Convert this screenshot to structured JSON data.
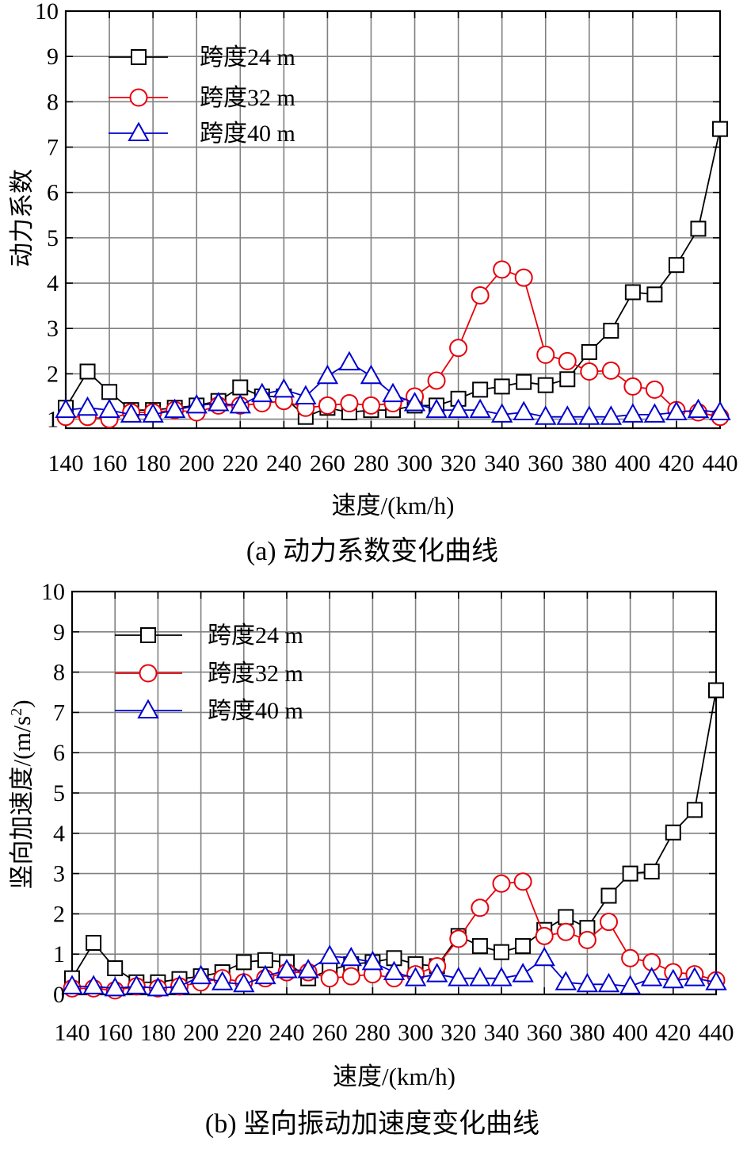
{
  "chart_data": [
    {
      "type": "line",
      "panel": "a",
      "caption": "(a)  动力系数变化曲线",
      "xlabel": "速度/(km/h)",
      "ylabel": "动力系数",
      "xlim": [
        140,
        440
      ],
      "ylim": [
        0.8,
        10
      ],
      "x_ticks": [
        140,
        160,
        180,
        200,
        220,
        240,
        260,
        280,
        300,
        320,
        340,
        360,
        380,
        400,
        420,
        440
      ],
      "y_ticks": [
        1,
        2,
        3,
        4,
        5,
        6,
        7,
        8,
        9,
        10
      ],
      "y_tick_labels": [
        "1",
        "2",
        "3",
        "4",
        "5",
        "6",
        "7",
        "8",
        "9",
        "10"
      ],
      "grid": true,
      "legend_position": "top-left",
      "x": [
        140,
        150,
        160,
        170,
        180,
        190,
        200,
        210,
        220,
        230,
        240,
        250,
        260,
        270,
        280,
        290,
        300,
        310,
        320,
        330,
        340,
        350,
        360,
        370,
        380,
        390,
        400,
        410,
        420,
        430,
        440
      ],
      "series": [
        {
          "name": "跨度24 m",
          "color": "#000000",
          "marker": "square",
          "values": [
            1.25,
            2.05,
            1.6,
            1.2,
            1.2,
            1.25,
            1.3,
            1.4,
            1.7,
            1.5,
            1.5,
            1.05,
            1.25,
            1.15,
            1.2,
            1.2,
            1.3,
            1.3,
            1.45,
            1.65,
            1.72,
            1.82,
            1.75,
            1.88,
            2.48,
            2.95,
            3.8,
            3.75,
            4.4,
            5.2,
            7.4
          ]
        },
        {
          "name": "跨度32 m",
          "color": "#e8000b",
          "marker": "circle",
          "values": [
            1.05,
            1.05,
            1.0,
            1.15,
            1.15,
            1.2,
            1.15,
            1.3,
            1.3,
            1.35,
            1.4,
            1.25,
            1.3,
            1.35,
            1.3,
            1.35,
            1.5,
            1.85,
            2.57,
            3.73,
            4.3,
            4.12,
            2.42,
            2.28,
            2.05,
            2.07,
            1.72,
            1.65,
            1.2,
            1.15,
            1.05
          ]
        },
        {
          "name": "跨度40 m",
          "color": "#0000d0",
          "marker": "triangle",
          "values": [
            1.2,
            1.25,
            1.2,
            1.1,
            1.1,
            1.2,
            1.3,
            1.35,
            1.3,
            1.55,
            1.65,
            1.5,
            1.95,
            2.25,
            1.95,
            1.55,
            1.35,
            1.2,
            1.2,
            1.2,
            1.1,
            1.15,
            1.05,
            1.05,
            1.05,
            1.05,
            1.1,
            1.1,
            1.15,
            1.2,
            1.15
          ]
        }
      ]
    },
    {
      "type": "line",
      "panel": "b",
      "caption": "(b)  竖向振动加速度变化曲线",
      "xlabel": "速度/(km/h)",
      "ylabel": "竖向加速度/(m/s",
      "ylabel_sup": "2",
      "ylabel_end": ")",
      "xlim": [
        140,
        440
      ],
      "ylim": [
        0,
        10
      ],
      "x_ticks": [
        140,
        160,
        180,
        200,
        220,
        240,
        260,
        280,
        300,
        320,
        340,
        360,
        380,
        400,
        420,
        440
      ],
      "y_ticks": [
        0,
        1,
        2,
        3,
        4,
        5,
        6,
        7,
        8,
        9,
        10
      ],
      "y_tick_labels": [
        "0",
        "1",
        "2",
        "3",
        "4",
        "5",
        "6",
        "7",
        "8",
        "9",
        "10"
      ],
      "grid": true,
      "legend_position": "top-left",
      "x": [
        140,
        150,
        160,
        170,
        180,
        190,
        200,
        210,
        220,
        230,
        240,
        250,
        260,
        270,
        280,
        290,
        300,
        310,
        320,
        330,
        340,
        350,
        360,
        370,
        380,
        390,
        400,
        410,
        420,
        430,
        440
      ],
      "series": [
        {
          "name": "跨度24 m",
          "color": "#000000",
          "marker": "square",
          "values": [
            0.4,
            1.28,
            0.65,
            0.3,
            0.3,
            0.38,
            0.45,
            0.55,
            0.8,
            0.85,
            0.8,
            0.4,
            0.6,
            0.75,
            0.8,
            0.9,
            0.75,
            0.7,
            1.45,
            1.2,
            1.05,
            1.2,
            1.6,
            1.92,
            1.65,
            2.45,
            3.0,
            3.05,
            4.02,
            4.58,
            7.55
          ]
        },
        {
          "name": "跨度32 m",
          "color": "#e8000b",
          "marker": "circle",
          "values": [
            0.15,
            0.15,
            0.1,
            0.2,
            0.15,
            0.2,
            0.3,
            0.4,
            0.3,
            0.4,
            0.55,
            0.55,
            0.4,
            0.45,
            0.5,
            0.4,
            0.5,
            0.7,
            1.38,
            2.15,
            2.75,
            2.8,
            1.45,
            1.55,
            1.35,
            1.8,
            0.9,
            0.8,
            0.55,
            0.5,
            0.35
          ]
        },
        {
          "name": "跨度40 m",
          "color": "#0000d0",
          "marker": "triangle",
          "values": [
            0.2,
            0.2,
            0.15,
            0.2,
            0.15,
            0.2,
            0.45,
            0.3,
            0.25,
            0.45,
            0.6,
            0.6,
            0.95,
            0.9,
            0.8,
            0.55,
            0.4,
            0.5,
            0.4,
            0.4,
            0.4,
            0.5,
            0.9,
            0.3,
            0.25,
            0.25,
            0.2,
            0.4,
            0.35,
            0.4,
            0.3
          ]
        }
      ]
    }
  ]
}
